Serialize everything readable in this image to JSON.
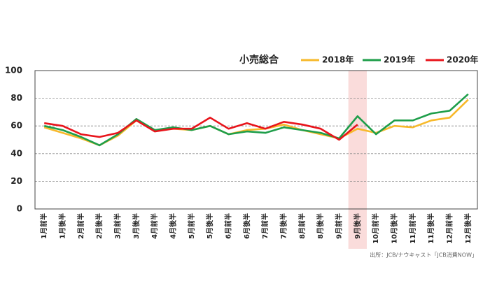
{
  "chart_data": {
    "type": "line",
    "title": "小売総合",
    "categories": [
      "1月前半",
      "1月後半",
      "2月前半",
      "2月後半",
      "3月前半",
      "3月後半",
      "4月前半",
      "4月後半",
      "5月前半",
      "5月後半",
      "6月前半",
      "6月後半",
      "7月前半",
      "7月後半",
      "8月前半",
      "8月後半",
      "9月前半",
      "9月後半",
      "10月前半",
      "10月後半",
      "11月前半",
      "11月後半",
      "12月前半",
      "12月後半"
    ],
    "series": [
      {
        "name": "2018年",
        "color": "#f7b92b",
        "values": [
          59,
          55,
          51,
          46,
          53,
          64,
          57,
          58,
          57,
          60,
          54,
          57,
          58,
          61,
          57,
          54,
          51,
          58,
          55,
          60,
          59,
          64,
          66,
          79
        ]
      },
      {
        "name": "2019年",
        "color": "#1e9e4a",
        "values": [
          60,
          57,
          52,
          46,
          54,
          65,
          57,
          59,
          57,
          60,
          54,
          56,
          55,
          59,
          57,
          55,
          51,
          67,
          54,
          64,
          64,
          69,
          71,
          83
        ]
      },
      {
        "name": "2020年",
        "color": "#e8141b",
        "values": [
          62,
          60,
          54,
          52,
          55,
          64,
          56,
          58,
          58,
          66,
          58,
          62,
          58,
          63,
          61,
          58,
          50,
          61,
          null,
          null,
          null,
          null,
          null,
          null
        ]
      }
    ],
    "ylim": [
      0,
      100
    ],
    "yticks": [
      0,
      20,
      40,
      60,
      80,
      100
    ],
    "grid": true,
    "highlight_index": 17,
    "highlight_color": "#fadcdb",
    "source": "出所：JCB/ナウキャスト「JCB消費NOW」"
  }
}
